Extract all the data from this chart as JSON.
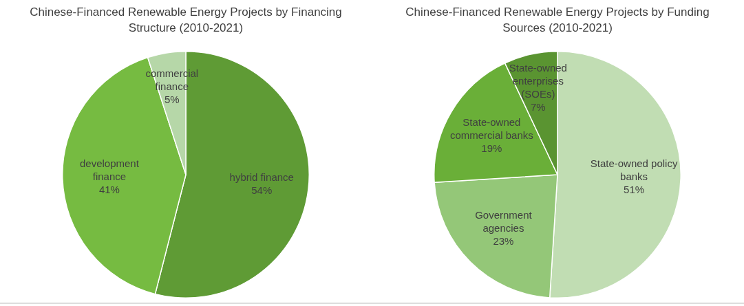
{
  "chart_data": [
    {
      "type": "pie",
      "title": "Chinese-Financed Renewable Energy Projects by Financing Structure (2010-2021)",
      "categories": [
        "hybrid finance",
        "development finance",
        "commercial finance"
      ],
      "values": [
        54,
        41,
        5
      ],
      "value_labels": [
        "54%",
        "41%",
        "5%"
      ],
      "colors": [
        "#5f9b35",
        "#76bb41",
        "#b6d7a8"
      ],
      "legend": false
    },
    {
      "type": "pie",
      "title": "Chinese-Financed Renewable Energy Projects by Funding Sources (2010-2021)",
      "categories": [
        "State-owned policy banks",
        "Government agencies",
        "State-owned commercial banks",
        "State-owned enterprises (SOEs)"
      ],
      "values": [
        51,
        23,
        19,
        7
      ],
      "value_labels": [
        "51%",
        "23%",
        "19%",
        "7%"
      ],
      "colors": [
        "#c1ddb3",
        "#94c778",
        "#6aaf38",
        "#5a9431"
      ],
      "legend": false
    }
  ]
}
